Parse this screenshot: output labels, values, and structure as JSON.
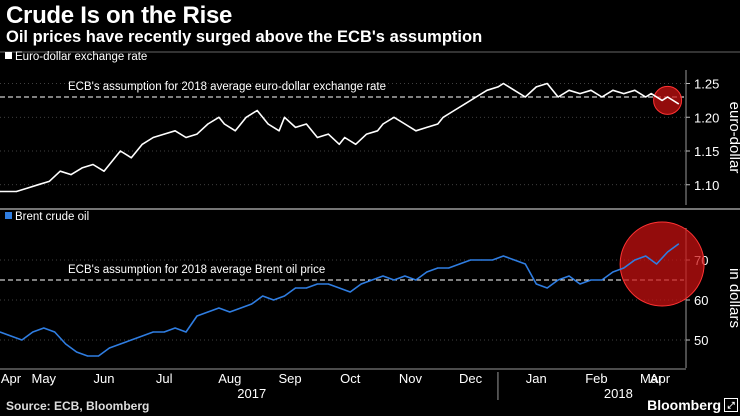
{
  "title": "Crude Is on the Rise",
  "subtitle": "Oil prices have recently surged above the ECB's assumption",
  "source": "Source: ECB, Bloomberg",
  "brand": "Bloomberg",
  "brand_icon": "expand-icon",
  "colors": {
    "fx": "#ffffff",
    "oil": "#2f7de1",
    "highlight": "#cc1111",
    "grid": "#555555"
  },
  "chart_data": [
    {
      "type": "line",
      "legend": "Euro-dollar exchange rate",
      "ylabel": "euro-dollar",
      "ylim": [
        1.07,
        1.27
      ],
      "yticks": [
        1.1,
        1.15,
        1.2,
        1.25
      ],
      "ytick_labels": [
        "1.10",
        "1.15",
        "1.20",
        "1.25"
      ],
      "reference_value": 1.23,
      "reference_label": "ECB's assumption for 2018 average euro-dollar exchange rate",
      "series": [
        {
          "name": "Euro-dollar exchange rate",
          "x": [
            0,
            3,
            5,
            7,
            9,
            11,
            13,
            15,
            17,
            19,
            21,
            22,
            24,
            26,
            28,
            30,
            32,
            34,
            36,
            38,
            40,
            41,
            43,
            45,
            47,
            49,
            51,
            52,
            54,
            56,
            58,
            60,
            62,
            63,
            65,
            67,
            69,
            70,
            72,
            74,
            76,
            78,
            80,
            81,
            83,
            85,
            87,
            89,
            91,
            92,
            94,
            96,
            98,
            100,
            102,
            104,
            106,
            108,
            110,
            112,
            114,
            116,
            118,
            119,
            121,
            122,
            124
          ],
          "values": [
            1.09,
            1.09,
            1.095,
            1.1,
            1.105,
            1.12,
            1.115,
            1.125,
            1.13,
            1.12,
            1.14,
            1.15,
            1.14,
            1.16,
            1.17,
            1.175,
            1.18,
            1.17,
            1.175,
            1.19,
            1.2,
            1.19,
            1.18,
            1.2,
            1.21,
            1.19,
            1.18,
            1.2,
            1.185,
            1.19,
            1.17,
            1.175,
            1.16,
            1.17,
            1.16,
            1.175,
            1.18,
            1.19,
            1.2,
            1.19,
            1.18,
            1.185,
            1.19,
            1.2,
            1.21,
            1.22,
            1.23,
            1.24,
            1.245,
            1.25,
            1.24,
            1.23,
            1.245,
            1.25,
            1.23,
            1.24,
            1.235,
            1.24,
            1.23,
            1.24,
            1.235,
            1.24,
            1.23,
            1.235,
            1.225,
            1.23,
            1.22
          ]
        }
      ],
      "highlight": {
        "x": 122,
        "value": 1.225,
        "radius": "small"
      }
    },
    {
      "type": "line",
      "legend": "Brent crude oil",
      "ylabel": "in dollars",
      "ylim": [
        43,
        78
      ],
      "yticks": [
        50,
        60,
        70
      ],
      "ytick_labels": [
        "50",
        "60",
        "70"
      ],
      "reference_value": 65,
      "reference_label": "ECB's assumption for 2018 average Brent oil price",
      "series": [
        {
          "name": "Brent crude oil",
          "x": [
            0,
            2,
            4,
            6,
            8,
            10,
            12,
            14,
            16,
            18,
            20,
            22,
            24,
            26,
            28,
            30,
            32,
            34,
            36,
            38,
            40,
            42,
            44,
            46,
            48,
            50,
            52,
            54,
            56,
            58,
            60,
            62,
            64,
            66,
            68,
            70,
            72,
            74,
            76,
            78,
            80,
            82,
            84,
            86,
            88,
            90,
            92,
            94,
            96,
            98,
            100,
            102,
            104,
            106,
            108,
            110,
            112,
            114,
            116,
            118,
            120,
            122,
            124
          ],
          "values": [
            52,
            51,
            50,
            52,
            53,
            52,
            49,
            47,
            46,
            46,
            48,
            49,
            50,
            51,
            52,
            52,
            53,
            52,
            56,
            57,
            58,
            57,
            58,
            59,
            61,
            60,
            61,
            63,
            63,
            64,
            64,
            63,
            62,
            64,
            65,
            66,
            65,
            66,
            65,
            67,
            68,
            68,
            69,
            70,
            70,
            70,
            71,
            70,
            69,
            64,
            63,
            65,
            66,
            64,
            65,
            65,
            67,
            68,
            70,
            71,
            69,
            72,
            74
          ]
        }
      ],
      "highlight": {
        "x": 121,
        "value": 69,
        "radius": "large"
      }
    }
  ],
  "x_axis": {
    "range": [
      0,
      125
    ],
    "months": [
      {
        "label": "Apr",
        "x": 2
      },
      {
        "label": "May",
        "x": 8
      },
      {
        "label": "Jun",
        "x": 19
      },
      {
        "label": "Jul",
        "x": 30
      },
      {
        "label": "Aug",
        "x": 42
      },
      {
        "label": "Sep",
        "x": 53
      },
      {
        "label": "Oct",
        "x": 64
      },
      {
        "label": "Nov",
        "x": 75
      },
      {
        "label": "Dec",
        "x": 86
      },
      {
        "label": "Jan",
        "x": 98
      },
      {
        "label": "Feb",
        "x": 109
      },
      {
        "label": "Mar",
        "x": 119
      },
      {
        "label": "Apr",
        "x": 130
      }
    ],
    "years": [
      {
        "label": "2017",
        "x": 46
      },
      {
        "label": "2018",
        "x": 113
      }
    ],
    "year_divider_x": 91
  }
}
